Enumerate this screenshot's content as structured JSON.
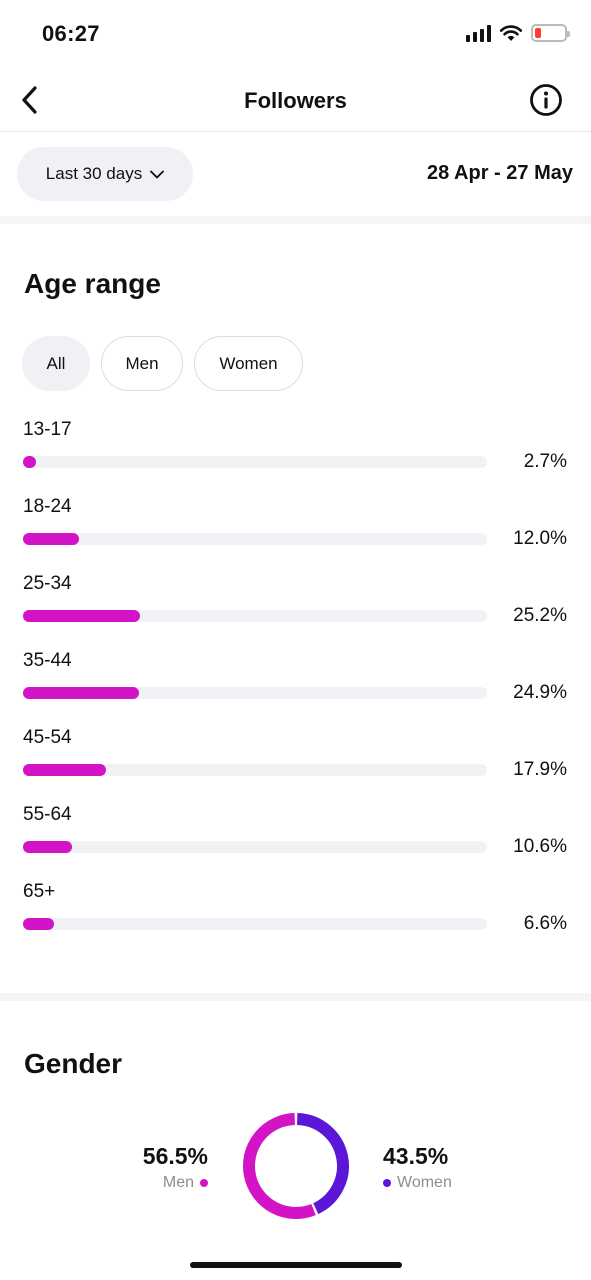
{
  "status_bar": {
    "time": "06:27"
  },
  "nav": {
    "title": "Followers",
    "back_icon": "chevron-left-icon",
    "info_icon": "info-icon"
  },
  "filter": {
    "period_label": "Last 30 days",
    "date_range": "28 Apr - 27 May"
  },
  "age_range": {
    "title": "Age range",
    "tabs": [
      {
        "label": "All",
        "active": true
      },
      {
        "label": "Men",
        "active": false
      },
      {
        "label": "Women",
        "active": false
      }
    ],
    "rows": [
      {
        "label": "13-17",
        "value_text": "2.7%",
        "value": 2.7
      },
      {
        "label": "18-24",
        "value_text": "12.0%",
        "value": 12.0
      },
      {
        "label": "25-34",
        "value_text": "25.2%",
        "value": 25.2
      },
      {
        "label": "35-44",
        "value_text": "24.9%",
        "value": 24.9
      },
      {
        "label": "45-54",
        "value_text": "17.9%",
        "value": 17.9
      },
      {
        "label": "55-64",
        "value_text": "10.6%",
        "value": 10.6
      },
      {
        "label": "65+",
        "value_text": "6.6%",
        "value": 6.6
      }
    ]
  },
  "gender": {
    "title": "Gender",
    "men": {
      "pct_text": "56.5%",
      "label": "Men",
      "value": 56.5
    },
    "women": {
      "pct_text": "43.5%",
      "label": "Women",
      "value": 43.5
    }
  },
  "colors": {
    "men": "#d214c6",
    "women": "#5b16d8",
    "bar": "#d214c6",
    "track": "#f1f2f5"
  }
}
